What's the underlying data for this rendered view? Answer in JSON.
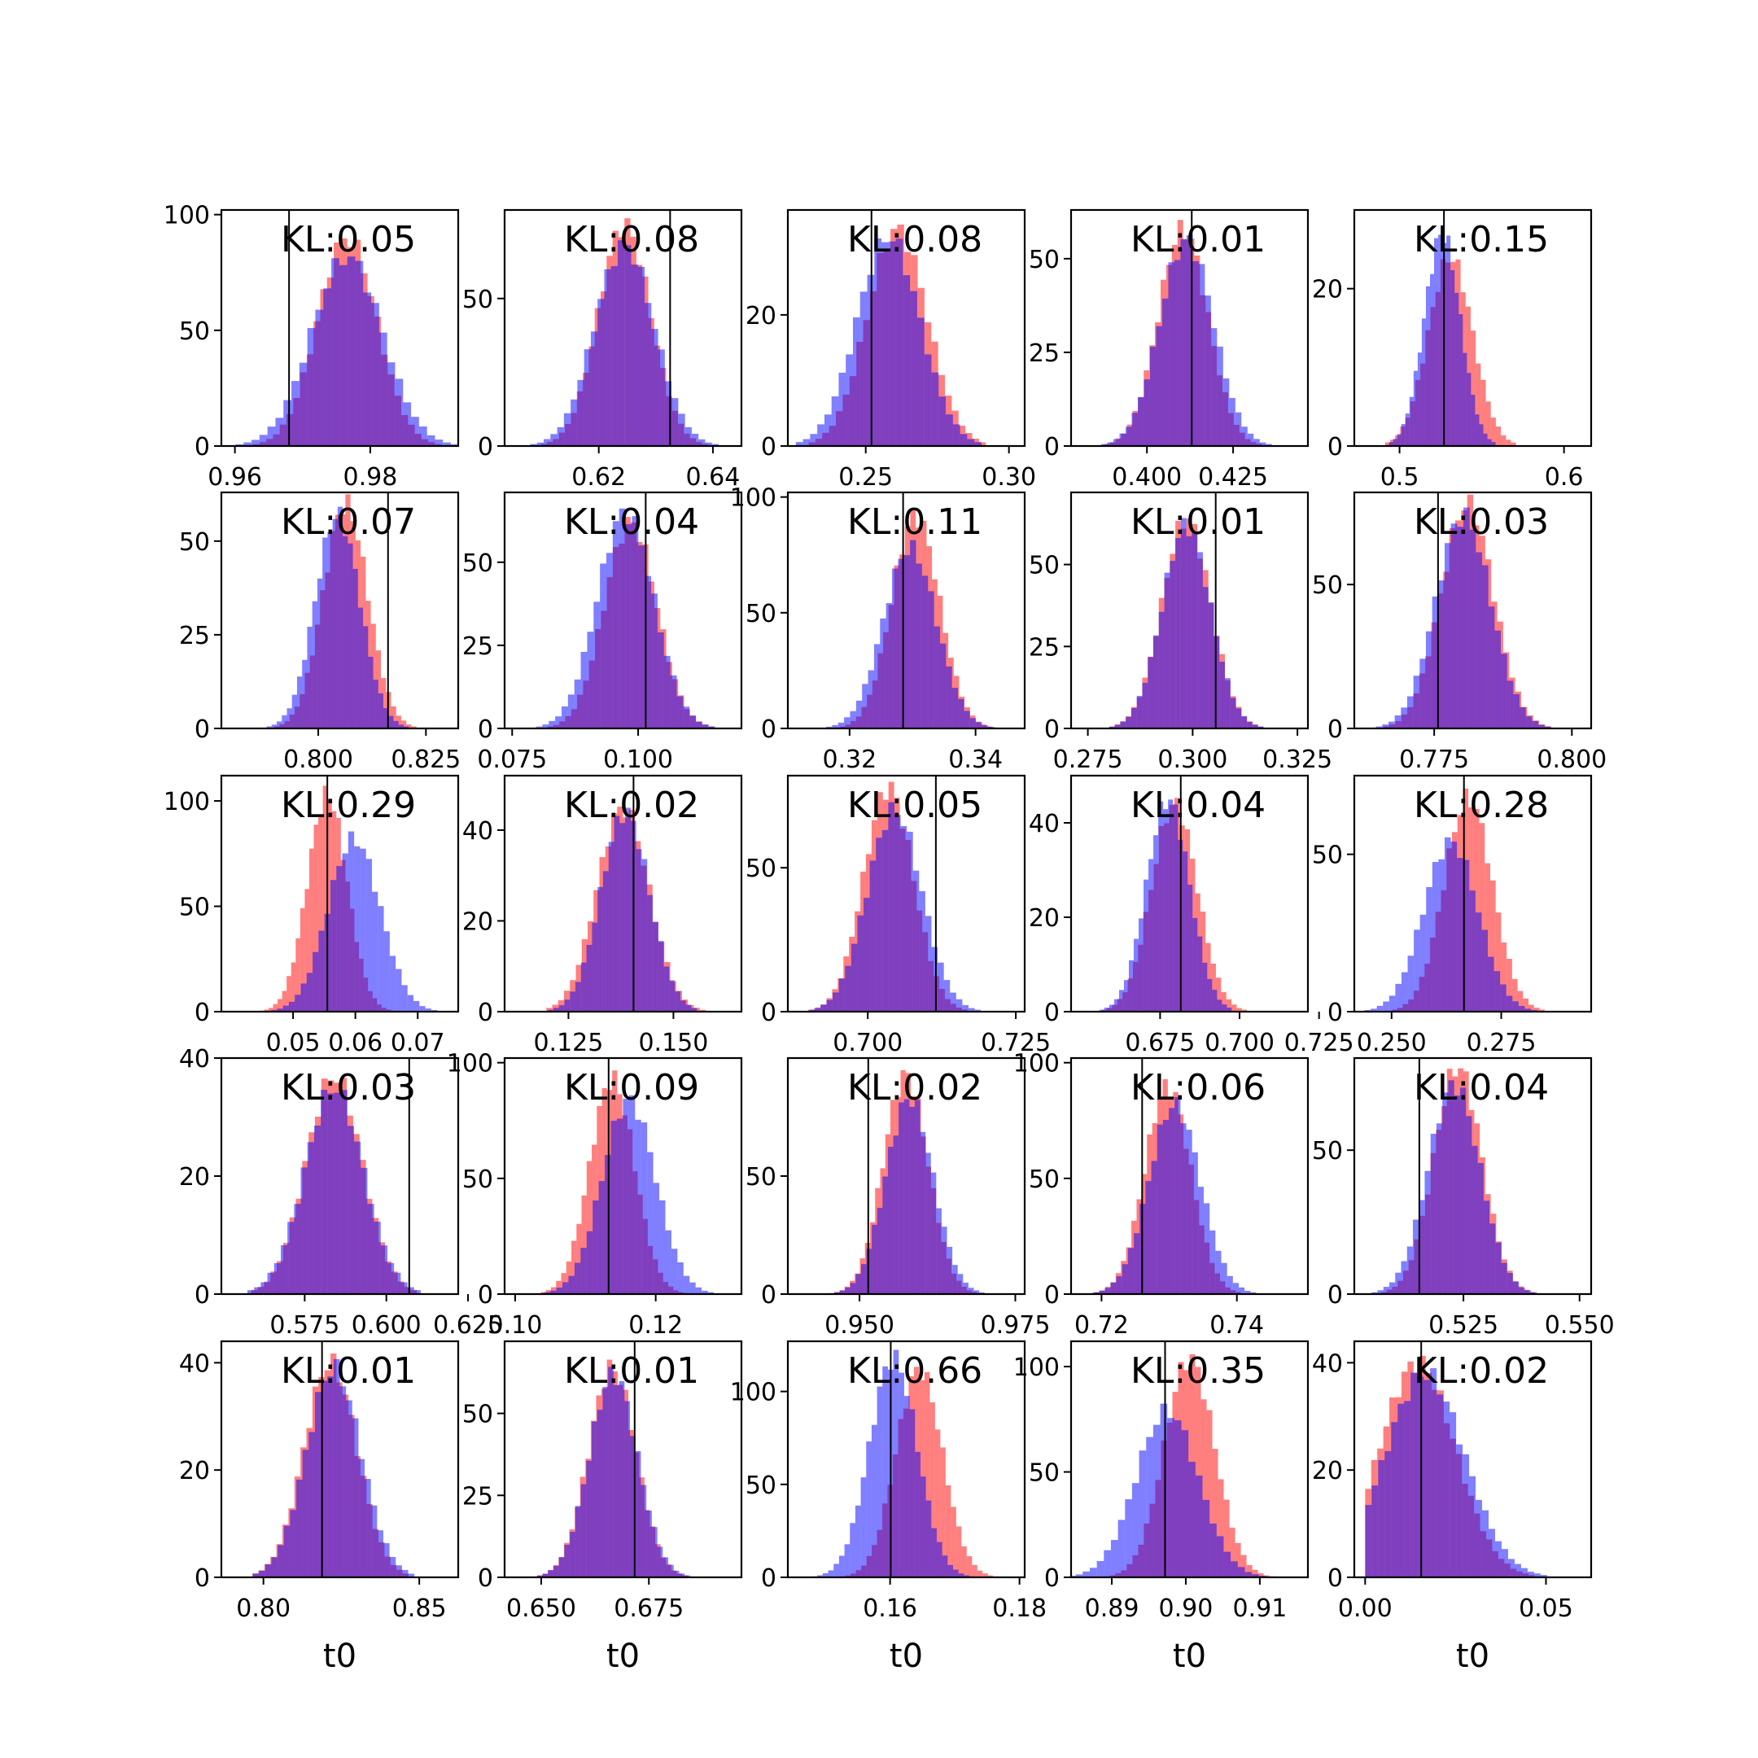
{
  "chart_data": {
    "type": "histogram-grid",
    "rows": 5,
    "cols": 5,
    "colors": {
      "series_a": "#ff0000",
      "series_b": "#0000ff",
      "truth_line": "#000000",
      "frame": "#000000"
    },
    "series_opacity": 0.5,
    "legend": "none",
    "panels": [
      {
        "kl": "KL:0.05",
        "xlim": [
          0.958,
          0.993
        ],
        "ylim": [
          0,
          102
        ],
        "xticks": [
          0.96,
          0.98
        ],
        "xtick_labels": [
          "0.96",
          "0.98"
        ],
        "yticks": [
          0,
          50,
          100
        ],
        "ytick_labels": [
          "0",
          "50",
          "100"
        ],
        "truth": 0.968,
        "xlabel": "",
        "red": {
          "mu": 0.9766,
          "sigma": 0.0044,
          "peak": 90
        },
        "blue": {
          "mu": 0.9766,
          "sigma": 0.0052,
          "peak": 82
        }
      },
      {
        "kl": "KL:0.08",
        "xlim": [
          0.6035,
          0.645
        ],
        "ylim": [
          0,
          80
        ],
        "xticks": [
          0.62,
          0.64
        ],
        "xtick_labels": [
          "0.62",
          "0.64"
        ],
        "yticks": [
          0,
          50
        ],
        "ytick_labels": [
          "0",
          "50"
        ],
        "truth": 0.6325,
        "xlabel": "",
        "red": {
          "mu": 0.6245,
          "sigma": 0.0046,
          "peak": 75
        },
        "blue": {
          "mu": 0.6245,
          "sigma": 0.0052,
          "peak": 68
        }
      },
      {
        "kl": "KL:0.08",
        "xlim": [
          0.2228,
          0.3055
        ],
        "ylim": [
          0,
          36
        ],
        "xticks": [
          0.25,
          0.3
        ],
        "xtick_labels": [
          "0.25",
          "0.30"
        ],
        "yticks": [
          0,
          20
        ],
        "ytick_labels": [
          "0",
          "20"
        ],
        "truth": 0.252,
        "xlabel": "",
        "red": {
          "mu": 0.261,
          "sigma": 0.0105,
          "peak": 33
        },
        "blue": {
          "mu": 0.258,
          "sigma": 0.011,
          "peak": 32
        }
      },
      {
        "kl": "KL:0.01",
        "xlim": [
          0.378,
          0.4467
        ],
        "ylim": [
          0,
          63
        ],
        "xticks": [
          0.4,
          0.425
        ],
        "xtick_labels": [
          "0.400",
          "0.425"
        ],
        "yticks": [
          0,
          25,
          50
        ],
        "ytick_labels": [
          "0",
          "25",
          "50"
        ],
        "truth": 0.413,
        "xlabel": "",
        "red": {
          "mu": 0.4105,
          "sigma": 0.0072,
          "peak": 58
        },
        "blue": {
          "mu": 0.4115,
          "sigma": 0.0078,
          "peak": 55
        }
      },
      {
        "kl": "KL:0.15",
        "xlim": [
          0.4725,
          0.6165
        ],
        "ylim": [
          0,
          30
        ],
        "xticks": [
          0.5,
          0.6
        ],
        "xtick_labels": [
          "0.5",
          "0.6"
        ],
        "yticks": [
          0,
          20
        ],
        "ytick_labels": [
          "0",
          "20"
        ],
        "truth": 0.527,
        "xlabel": "",
        "red": {
          "mu": 0.531,
          "sigma": 0.0135,
          "peak": 24
        },
        "blue": {
          "mu": 0.526,
          "sigma": 0.011,
          "peak": 27
        }
      },
      {
        "kl": "KL:0.07",
        "xlim": [
          0.7775,
          0.8325
        ],
        "ylim": [
          0,
          63
        ],
        "xticks": [
          0.8,
          0.825
        ],
        "xtick_labels": [
          "0.800",
          "0.825"
        ],
        "yticks": [
          0,
          25,
          50
        ],
        "ytick_labels": [
          "0",
          "25",
          "50"
        ],
        "truth": 0.8162,
        "xlabel": "",
        "red": {
          "mu": 0.8063,
          "sigma": 0.0052,
          "peak": 60
        },
        "blue": {
          "mu": 0.8045,
          "sigma": 0.0052,
          "peak": 57
        }
      },
      {
        "kl": "KL:0.04",
        "xlim": [
          0.0735,
          0.1205
        ],
        "ylim": [
          0,
          71
        ],
        "xticks": [
          0.075,
          0.1
        ],
        "xtick_labels": [
          "0.075",
          "0.100"
        ],
        "yticks": [
          0,
          25,
          50
        ],
        "ytick_labels": [
          "0",
          "25",
          "50"
        ],
        "truth": 0.1015,
        "xlabel": "",
        "red": {
          "mu": 0.0985,
          "sigma": 0.0052,
          "peak": 62
        },
        "blue": {
          "mu": 0.0975,
          "sigma": 0.0056,
          "peak": 65
        }
      },
      {
        "kl": "KL:0.11",
        "xlim": [
          0.3102,
          0.3478
        ],
        "ylim": [
          0,
          102
        ],
        "xticks": [
          0.32,
          0.34
        ],
        "xtick_labels": [
          "0.32",
          "0.34"
        ],
        "yticks": [
          0,
          50,
          100
        ],
        "ytick_labels": [
          "0",
          "50",
          "100"
        ],
        "truth": 0.3285,
        "xlabel": "",
        "red": {
          "mu": 0.3305,
          "sigma": 0.0038,
          "peak": 92
        },
        "blue": {
          "mu": 0.3296,
          "sigma": 0.0042,
          "peak": 78
        }
      },
      {
        "kl": "KL:0.01",
        "xlim": [
          0.271,
          0.3275
        ],
        "ylim": [
          0,
          72
        ],
        "xticks": [
          0.275,
          0.3,
          0.325
        ],
        "xtick_labels": [
          "0.275",
          "0.300",
          "0.325"
        ],
        "yticks": [
          0,
          25,
          50
        ],
        "ytick_labels": [
          "0",
          "25",
          "50"
        ],
        "truth": 0.3055,
        "xlabel": "",
        "red": {
          "mu": 0.2985,
          "sigma": 0.0058,
          "peak": 64
        },
        "blue": {
          "mu": 0.2985,
          "sigma": 0.0058,
          "peak": 62
        }
      },
      {
        "kl": "KL:0.03",
        "xlim": [
          0.7605,
          0.8035
        ],
        "ylim": [
          0,
          82
        ],
        "xticks": [
          0.775,
          0.8
        ],
        "xtick_labels": [
          "0.775",
          "0.800"
        ],
        "yticks": [
          0,
          50
        ],
        "ytick_labels": [
          "0",
          "50"
        ],
        "truth": 0.7757,
        "xlabel": "",
        "red": {
          "mu": 0.781,
          "sigma": 0.0048,
          "peak": 78
        },
        "blue": {
          "mu": 0.7803,
          "sigma": 0.005,
          "peak": 74
        }
      },
      {
        "kl": "KL:0.29",
        "xlim": [
          0.0385,
          0.0765
        ],
        "ylim": [
          0,
          112
        ],
        "xticks": [
          0.05,
          0.06,
          0.07
        ],
        "xtick_labels": [
          "0.05",
          "0.06",
          "0.07"
        ],
        "yticks": [
          0,
          50,
          100
        ],
        "ytick_labels": [
          "0",
          "50",
          "100"
        ],
        "truth": 0.0555,
        "xlabel": "",
        "red": {
          "mu": 0.0555,
          "sigma": 0.0032,
          "peak": 103
        },
        "blue": {
          "mu": 0.0598,
          "sigma": 0.0042,
          "peak": 82
        }
      },
      {
        "kl": "KL:0.02",
        "xlim": [
          0.1098,
          0.1662
        ],
        "ylim": [
          0,
          52
        ],
        "xticks": [
          0.125,
          0.15
        ],
        "xtick_labels": [
          "0.125",
          "0.150"
        ],
        "yticks": [
          0,
          20,
          40
        ],
        "ytick_labels": [
          "0",
          "20",
          "40"
        ],
        "truth": 0.1405,
        "xlabel": "",
        "red": {
          "mu": 0.138,
          "sigma": 0.0062,
          "peak": 45
        },
        "blue": {
          "mu": 0.1385,
          "sigma": 0.0058,
          "peak": 44
        }
      },
      {
        "kl": "KL:0.05",
        "xlim": [
          0.6865,
          0.7265
        ],
        "ylim": [
          0,
          82
        ],
        "xticks": [
          0.7,
          0.725
        ],
        "xtick_labels": [
          "0.700",
          "0.725"
        ],
        "yticks": [
          0,
          50
        ],
        "ytick_labels": [
          "0",
          "50"
        ],
        "truth": 0.7115,
        "xlabel": "",
        "red": {
          "mu": 0.7035,
          "sigma": 0.0042,
          "peak": 78
        },
        "blue": {
          "mu": 0.7045,
          "sigma": 0.0046,
          "peak": 70
        }
      },
      {
        "kl": "KL:0.04",
        "xlim": [
          0.647,
          0.7215
        ],
        "ylim": [
          0,
          50
        ],
        "xticks": [
          0.675,
          0.7,
          0.725
        ],
        "xtick_labels": [
          "0.675",
          "0.700",
          "0.725"
        ],
        "yticks": [
          0,
          20,
          40
        ],
        "ytick_labels": [
          "0",
          "20",
          "40"
        ],
        "truth": 0.6815,
        "xlabel": "",
        "red": {
          "mu": 0.6795,
          "sigma": 0.0072,
          "peak": 44
        },
        "blue": {
          "mu": 0.6775,
          "sigma": 0.0068,
          "peak": 45
        }
      },
      {
        "kl": "KL:0.28",
        "xlim": [
          0.2415,
          0.2955
        ],
        "ylim": [
          0,
          75
        ],
        "xticks": [
          0.25,
          0.275
        ],
        "xtick_labels": [
          "0.250",
          "0.275"
        ],
        "yticks": [
          0,
          50
        ],
        "ytick_labels": [
          "0",
          "50"
        ],
        "truth": 0.2665,
        "xlabel": "",
        "red": {
          "mu": 0.2675,
          "sigma": 0.0055,
          "peak": 68
        },
        "blue": {
          "mu": 0.2635,
          "sigma": 0.0062,
          "peak": 54
        }
      },
      {
        "kl": "KL:0.03",
        "xlim": [
          0.5495,
          0.622
        ],
        "ylim": [
          0,
          40
        ],
        "xticks": [
          0.575,
          0.6,
          0.625
        ],
        "xtick_labels": [
          "0.575",
          "0.600",
          "0.625"
        ],
        "yticks": [
          0,
          20,
          40
        ],
        "ytick_labels": [
          "0",
          "20",
          "40"
        ],
        "truth": 0.607,
        "xlabel": "",
        "red": {
          "mu": 0.584,
          "sigma": 0.0086,
          "peak": 37
        },
        "blue": {
          "mu": 0.584,
          "sigma": 0.009,
          "peak": 35
        }
      },
      {
        "kl": "KL:0.09",
        "xlim": [
          0.0985,
          0.1322
        ],
        "ylim": [
          0,
          102
        ],
        "xticks": [
          0.1,
          0.12
        ],
        "xtick_labels": [
          "0.10",
          "0.12"
        ],
        "yticks": [
          0,
          50,
          100
        ],
        "ytick_labels": [
          "0",
          "50",
          "100"
        ],
        "truth": 0.1133,
        "xlabel": "",
        "red": {
          "mu": 0.1138,
          "sigma": 0.0032,
          "peak": 93
        },
        "blue": {
          "mu": 0.1162,
          "sigma": 0.0038,
          "peak": 84
        }
      },
      {
        "kl": "KL:0.02",
        "xlim": [
          0.9385,
          0.9765
        ],
        "ylim": [
          0,
          100
        ],
        "xticks": [
          0.95,
          0.975
        ],
        "xtick_labels": [
          "0.950",
          "0.975"
        ],
        "yticks": [
          0,
          50
        ],
        "ytick_labels": [
          "0",
          "50"
        ],
        "truth": 0.9514,
        "xlabel": "",
        "red": {
          "mu": 0.9574,
          "sigma": 0.0036,
          "peak": 93
        },
        "blue": {
          "mu": 0.958,
          "sigma": 0.0038,
          "peak": 83
        }
      },
      {
        "kl": "KL:0.06",
        "xlim": [
          0.7155,
          0.7505
        ],
        "ylim": [
          0,
          102
        ],
        "xticks": [
          0.72,
          0.74
        ],
        "xtick_labels": [
          "0.72",
          "0.74"
        ],
        "yticks": [
          0,
          50,
          100
        ],
        "ytick_labels": [
          "0",
          "50",
          "100"
        ],
        "truth": 0.726,
        "xlabel": "",
        "red": {
          "mu": 0.7298,
          "sigma": 0.0034,
          "peak": 90
        },
        "blue": {
          "mu": 0.7308,
          "sigma": 0.0038,
          "peak": 82
        }
      },
      {
        "kl": "KL:0.04",
        "xlim": [
          0.5015,
          0.5525
        ],
        "ylim": [
          0,
          82
        ],
        "xticks": [
          0.525,
          0.55
        ],
        "xtick_labels": [
          "0.525",
          "0.550"
        ],
        "yticks": [
          0,
          50
        ],
        "ytick_labels": [
          "0",
          "50"
        ],
        "truth": 0.5155,
        "xlabel": "",
        "red": {
          "mu": 0.5238,
          "sigma": 0.0052,
          "peak": 79
        },
        "blue": {
          "mu": 0.523,
          "sigma": 0.0056,
          "peak": 73
        }
      },
      {
        "kl": "KL:0.01",
        "xlim": [
          0.7865,
          0.8625
        ],
        "ylim": [
          0,
          44
        ],
        "xticks": [
          0.8,
          0.85
        ],
        "xtick_labels": [
          "0.80",
          "0.85"
        ],
        "yticks": [
          0,
          20,
          40
        ],
        "ytick_labels": [
          "0",
          "20",
          "40"
        ],
        "truth": 0.8188,
        "xlabel": "t0",
        "red": {
          "mu": 0.8215,
          "sigma": 0.0085,
          "peak": 40
        },
        "blue": {
          "mu": 0.8225,
          "sigma": 0.0088,
          "peak": 39
        }
      },
      {
        "kl": "KL:0.01",
        "xlim": [
          0.6415,
          0.6965
        ],
        "ylim": [
          0,
          72
        ],
        "xticks": [
          0.65,
          0.675
        ],
        "xtick_labels": [
          "0.650",
          "0.675"
        ],
        "yticks": [
          0,
          25,
          50
        ],
        "ytick_labels": [
          "0",
          "25",
          "50"
        ],
        "truth": 0.6717,
        "xlabel": "t0",
        "red": {
          "mu": 0.6665,
          "sigma": 0.0055,
          "peak": 64
        },
        "blue": {
          "mu": 0.6668,
          "sigma": 0.0056,
          "peak": 62
        }
      },
      {
        "kl": "KL:0.66",
        "xlim": [
          0.1442,
          0.1808
        ],
        "ylim": [
          0,
          127
        ],
        "xticks": [
          0.16,
          0.18
        ],
        "xtick_labels": [
          "0.16",
          "0.18"
        ],
        "yticks": [
          0,
          50,
          100
        ],
        "ytick_labels": [
          "0",
          "50",
          "100"
        ],
        "truth": 0.1601,
        "xlabel": "t0",
        "red": {
          "mu": 0.1645,
          "sigma": 0.0036,
          "peak": 112
        },
        "blue": {
          "mu": 0.1605,
          "sigma": 0.0037,
          "peak": 118
        }
      },
      {
        "kl": "KL:0.35",
        "xlim": [
          0.8845,
          0.9165
        ],
        "ylim": [
          0,
          112
        ],
        "xticks": [
          0.89,
          0.9,
          0.91
        ],
        "xtick_labels": [
          "0.89",
          "0.90",
          "0.91"
        ],
        "yticks": [
          0,
          50,
          100
        ],
        "ytick_labels": [
          "0",
          "50",
          "100"
        ],
        "truth": 0.8972,
        "xlabel": "t0",
        "red": {
          "mu": 0.9005,
          "sigma": 0.0034,
          "peak": 104
        },
        "blue": {
          "mu": 0.8975,
          "sigma": 0.0042,
          "peak": 79
        }
      },
      {
        "kl": "KL:0.02",
        "xlim": [
          -0.003,
          0.0625
        ],
        "ylim": [
          0,
          44
        ],
        "xticks": [
          0.0,
          0.05
        ],
        "xtick_labels": [
          "0.00",
          "0.05"
        ],
        "yticks": [
          0,
          20,
          40
        ],
        "ytick_labels": [
          "0",
          "20",
          "40"
        ],
        "truth": 0.0155,
        "xlabel": "t0",
        "red": {
          "mu": 0.0145,
          "sigma": 0.0105,
          "peak": 40,
          "lower_bound": 0.0
        },
        "blue": {
          "mu": 0.0165,
          "sigma": 0.011,
          "peak": 38,
          "lower_bound": 0.0
        }
      }
    ]
  }
}
